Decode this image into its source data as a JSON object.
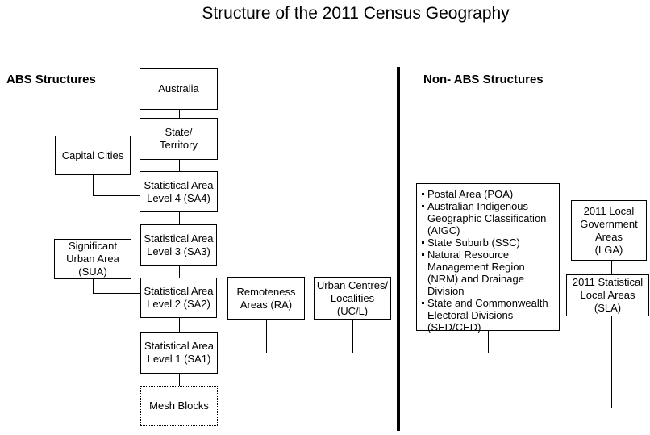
{
  "title": "Structure of the 2011 Census Geography",
  "sections": {
    "abs": "ABS Structures",
    "non_abs": "Non- ABS Structures"
  },
  "boxes": {
    "australia": "Australia",
    "state_territory": "State/\nTerritory",
    "capital_cities": "Capital Cities",
    "sa4": "Statistical Area\nLevel 4 (SA4)",
    "sa3": "Statistical Area\nLevel 3 (SA3)",
    "sua": "Significant\nUrban Area\n(SUA)",
    "sa2": "Statistical Area\nLevel 2 (SA2)",
    "ra": "Remoteness\nAreas (RA)",
    "ucl": "Urban Centres/\nLocalities\n(UC/L)",
    "sa1": "Statistical Area\nLevel 1 (SA1)",
    "mesh_blocks": "Mesh Blocks",
    "lga": "2011 Local\nGovernment\nAreas\n(LGA)",
    "sla": "2011 Statistical\nLocal Areas\n(SLA)"
  },
  "non_abs_list": [
    "Postal Area (POA)",
    "Australian Indigenous Geographic Classification (AIGC)",
    "State Suburb (SSC)",
    "Natural Resource Management Region (NRM) and Drainage Division",
    "State and Commonwealth Electoral Divisions (SED/CED)"
  ],
  "colors": {
    "line": "#000000",
    "background": "#ffffff",
    "text": "#000000"
  }
}
